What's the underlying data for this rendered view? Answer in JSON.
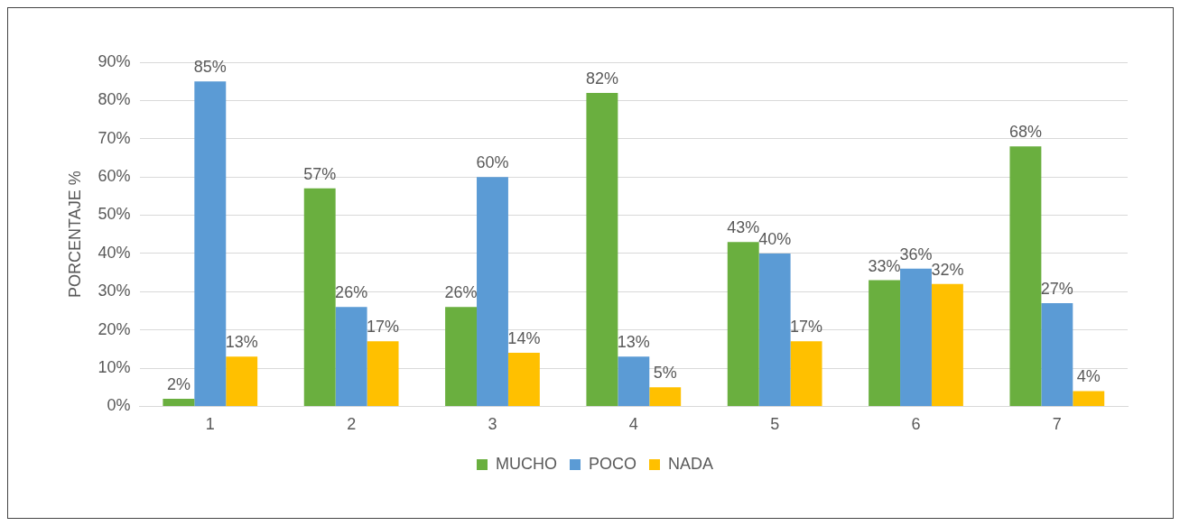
{
  "chart_data": {
    "type": "bar",
    "ylabel": "PORCENTAJE %",
    "categories": [
      "1",
      "2",
      "3",
      "4",
      "5",
      "6",
      "7"
    ],
    "series": [
      {
        "name": "MUCHO",
        "color": "#6aaf3f",
        "values": [
          2,
          57,
          26,
          82,
          43,
          33,
          68
        ],
        "value_labels": [
          "2%",
          "57%",
          "26%",
          "82%",
          "43%",
          "33%",
          "68%"
        ]
      },
      {
        "name": "POCO",
        "color": "#5b9bd5",
        "values": [
          85,
          26,
          60,
          13,
          40,
          36,
          27
        ],
        "value_labels": [
          "85%",
          "26%",
          "60%",
          "13%",
          "40%",
          "36%",
          "27%"
        ]
      },
      {
        "name": "NADA",
        "color": "#ffc000",
        "values": [
          13,
          17,
          14,
          5,
          17,
          32,
          4
        ],
        "value_labels": [
          "13%",
          "17%",
          "14%",
          "5%",
          "17%",
          "32%",
          "4%"
        ]
      }
    ],
    "ylim": [
      0,
      90
    ],
    "yticks": [
      {
        "value": 0,
        "label": "0%"
      },
      {
        "value": 10,
        "label": "10%"
      },
      {
        "value": 20,
        "label": "20%"
      },
      {
        "value": 30,
        "label": "30%"
      },
      {
        "value": 40,
        "label": "40%"
      },
      {
        "value": 50,
        "label": "50%"
      },
      {
        "value": 60,
        "label": "60%"
      },
      {
        "value": 70,
        "label": "70%"
      },
      {
        "value": 80,
        "label": "80%"
      },
      {
        "value": 90,
        "label": "90%"
      }
    ],
    "grid": "y",
    "legend": "bottom"
  }
}
